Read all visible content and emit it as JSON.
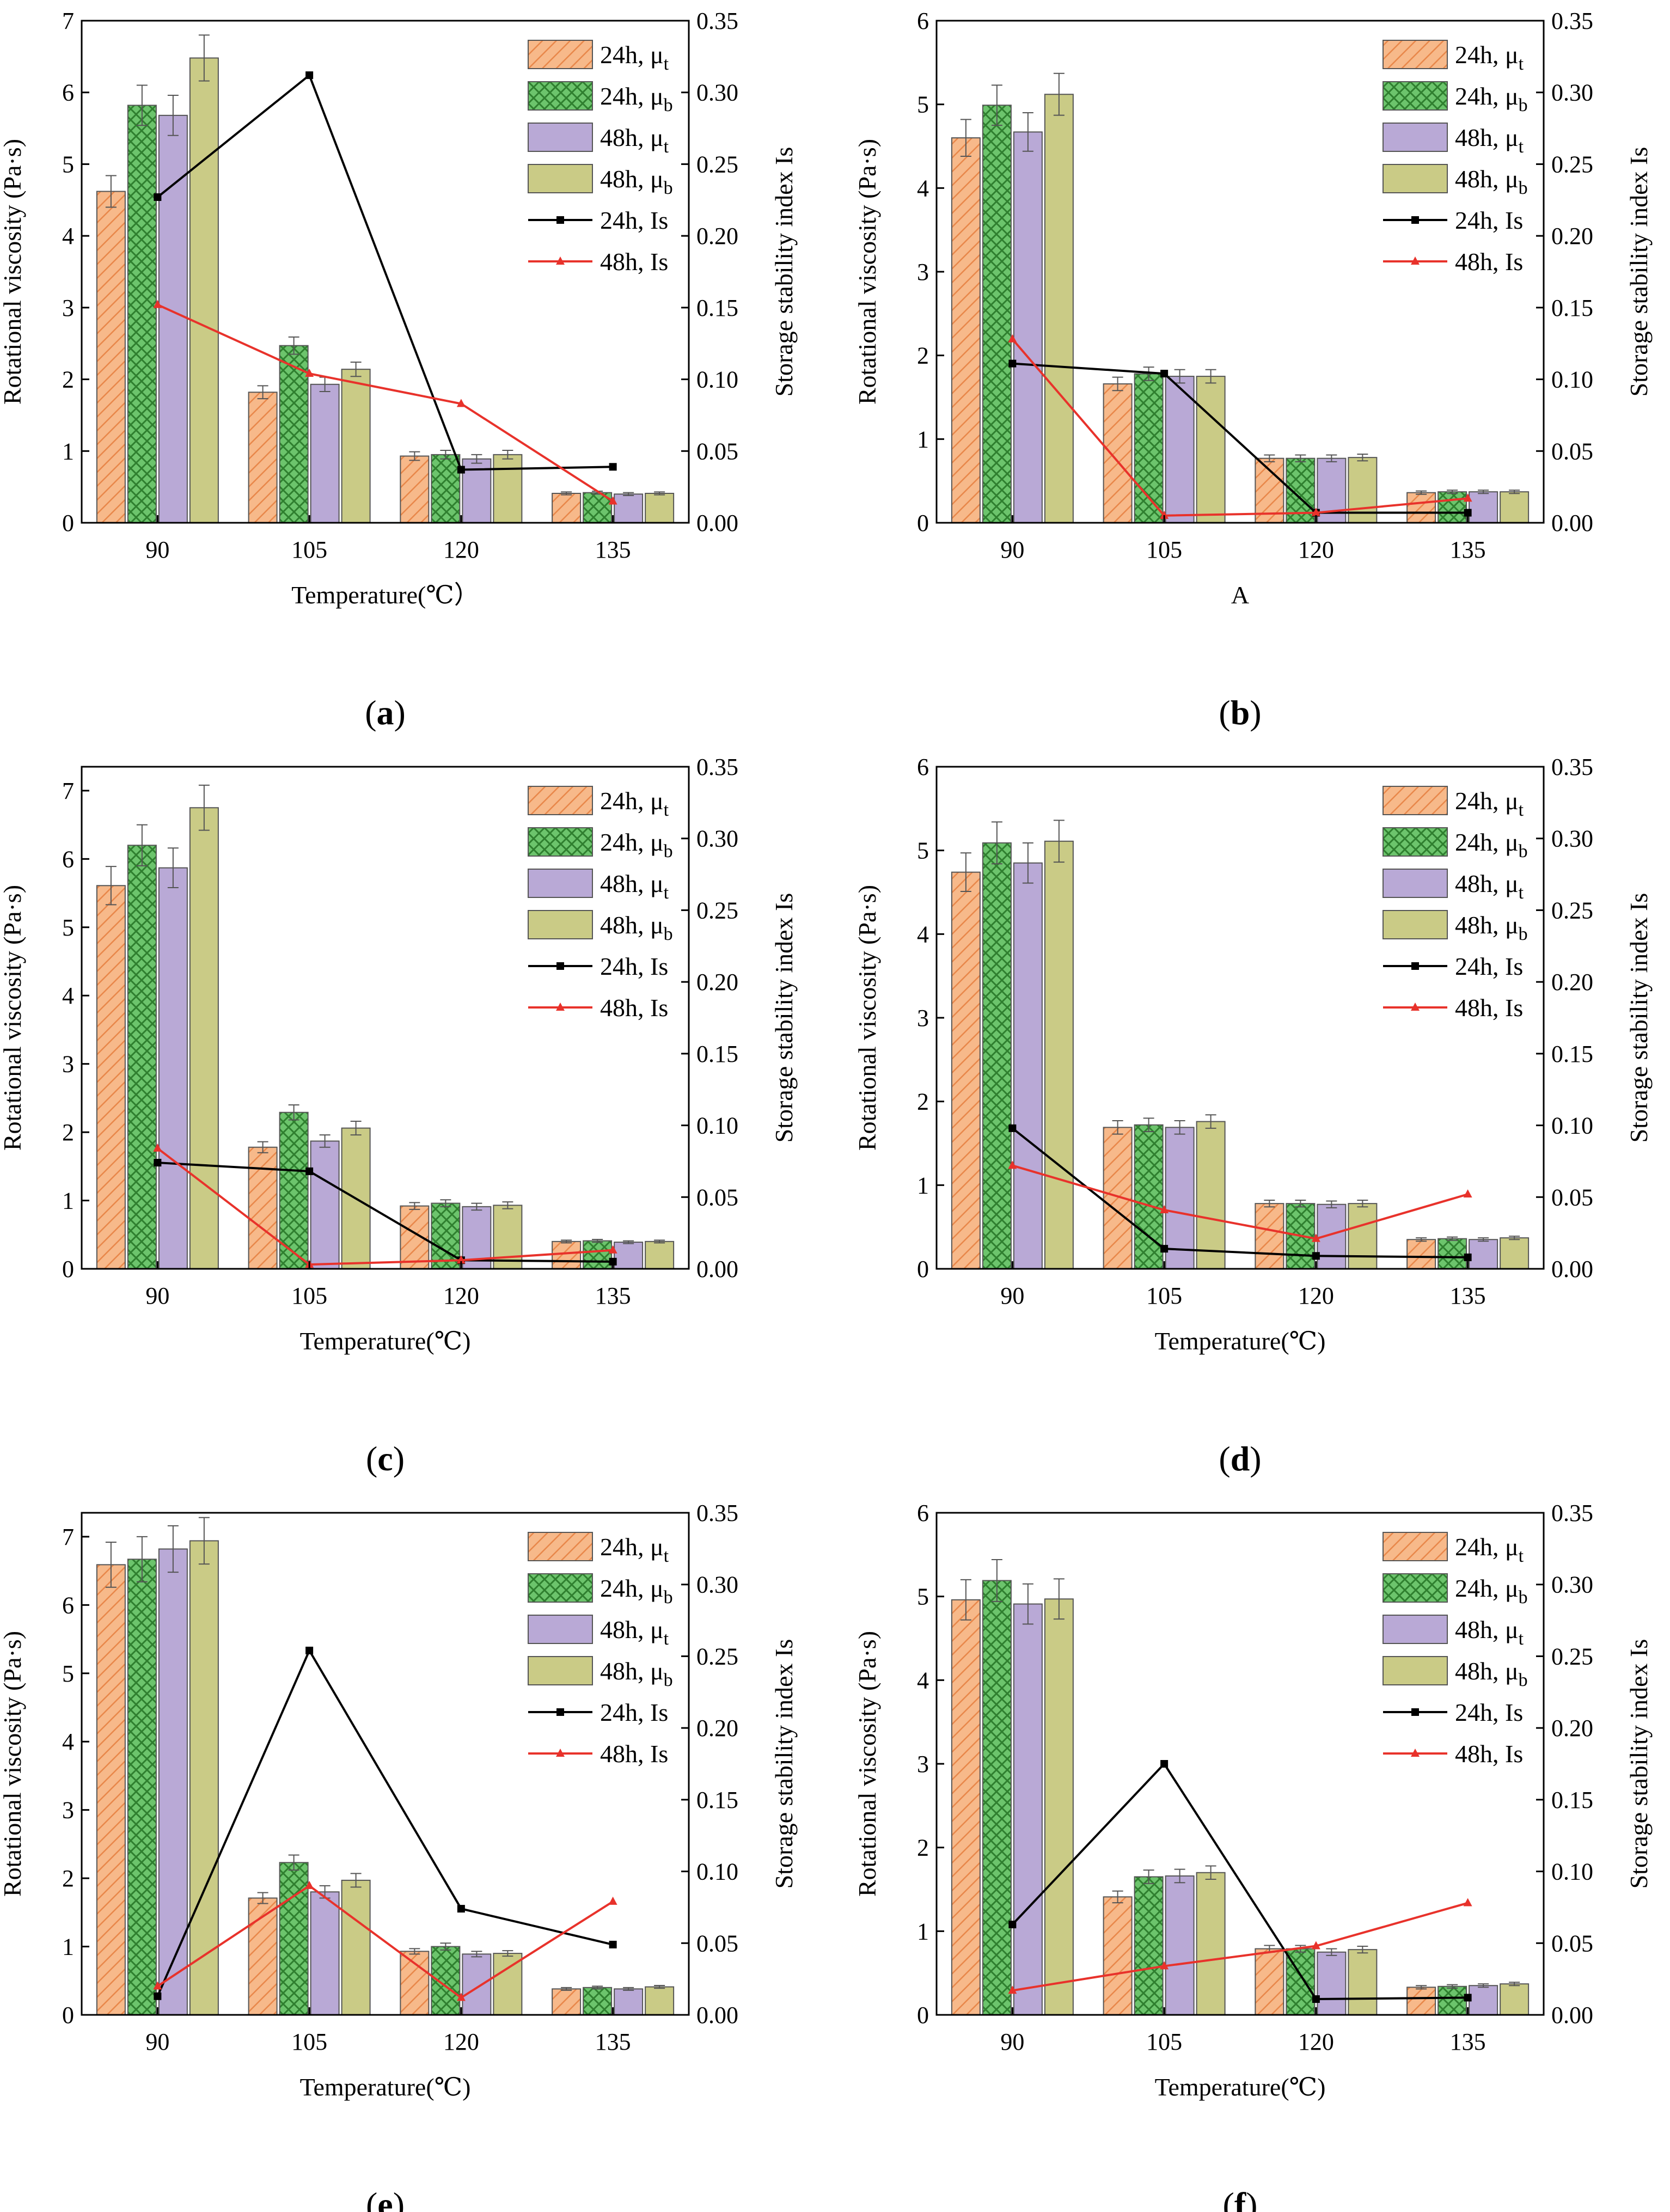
{
  "figure": {
    "caption_style": "parenthesized bold letter under each panel"
  },
  "colors": {
    "mut24": "#F7B98A",
    "mut24_hatch": "#E8874A",
    "mub24": "#6CC46C",
    "mub24_hatch": "#2F7F2F",
    "mut48": "#B9A9D6",
    "mub48": "#CACB86",
    "is24": "#000000",
    "is48": "#E8322B"
  },
  "chart_data": [
    {
      "type": "bar+line",
      "label": "a",
      "categories": [
        "90",
        "105",
        "120",
        "135"
      ],
      "xlabel": "Temperature(℃）",
      "ylabel_left": "Rotational viscosity (Pa·s)",
      "ylabel_right": "Storage stability index Is",
      "ylim_left": [
        0,
        7
      ],
      "yticks_left": [
        "0",
        "1",
        "2",
        "3",
        "4",
        "5",
        "6",
        "7"
      ],
      "ylim_right": [
        0,
        0.35
      ],
      "yticks_right": [
        "0.00",
        "0.05",
        "0.10",
        "0.15",
        "0.20",
        "0.25",
        "0.30",
        "0.35"
      ],
      "legend": [
        "24h, μt",
        "24h, μb",
        "48h, μt",
        "48h, μb",
        "24h, Is",
        "48h, Is"
      ],
      "bars": [
        {
          "name": "24h, μt",
          "values": [
            4.62,
            1.82,
            0.93,
            0.41
          ],
          "err": [
            0.22,
            0.09,
            0.06,
            0.02
          ]
        },
        {
          "name": "24h, μb",
          "values": [
            5.82,
            2.47,
            0.95,
            0.42
          ],
          "err": [
            0.28,
            0.12,
            0.06,
            0.02
          ]
        },
        {
          "name": "48h, μt",
          "values": [
            5.68,
            1.93,
            0.89,
            0.4
          ],
          "err": [
            0.28,
            0.1,
            0.06,
            0.02
          ]
        },
        {
          "name": "48h, μb",
          "values": [
            6.48,
            2.14,
            0.95,
            0.41
          ],
          "err": [
            0.32,
            0.1,
            0.06,
            0.02
          ]
        }
      ],
      "lines": [
        {
          "name": "24h, Is",
          "values": [
            0.227,
            0.312,
            0.037,
            0.039
          ]
        },
        {
          "name": "48h, Is",
          "values": [
            0.152,
            0.104,
            0.083,
            0.015
          ]
        }
      ]
    },
    {
      "type": "bar+line",
      "label": "b",
      "categories": [
        "90",
        "105",
        "120",
        "135"
      ],
      "xlabel": "A",
      "ylabel_left": "Rotational viscosity (Pa·s)",
      "ylabel_right": "Storage stability index Is",
      "ylim_left": [
        0,
        6
      ],
      "yticks_left": [
        "0",
        "1",
        "2",
        "3",
        "4",
        "5",
        "6"
      ],
      "ylim_right": [
        0,
        0.35
      ],
      "yticks_right": [
        "0.00",
        "0.05",
        "0.10",
        "0.15",
        "0.20",
        "0.25",
        "0.30",
        "0.35"
      ],
      "legend": [
        "24h, μt",
        "24h, μb",
        "48h, μt",
        "48h, μb",
        "24h, Is",
        "48h, Is"
      ],
      "bars": [
        {
          "name": "24h, μt",
          "values": [
            4.6,
            1.66,
            0.77,
            0.36
          ],
          "err": [
            0.22,
            0.08,
            0.04,
            0.02
          ]
        },
        {
          "name": "24h, μb",
          "values": [
            4.99,
            1.78,
            0.77,
            0.37
          ],
          "err": [
            0.24,
            0.08,
            0.04,
            0.02
          ]
        },
        {
          "name": "48h, μt",
          "values": [
            4.67,
            1.75,
            0.77,
            0.37
          ],
          "err": [
            0.23,
            0.08,
            0.04,
            0.02
          ]
        },
        {
          "name": "48h, μb",
          "values": [
            5.12,
            1.75,
            0.78,
            0.37
          ],
          "err": [
            0.25,
            0.08,
            0.04,
            0.02
          ]
        }
      ],
      "lines": [
        {
          "name": "24h, Is",
          "values": [
            0.111,
            0.104,
            0.007,
            0.007
          ]
        },
        {
          "name": "48h, Is",
          "values": [
            0.128,
            0.005,
            0.007,
            0.017
          ]
        }
      ]
    },
    {
      "type": "bar+line",
      "label": "c",
      "categories": [
        "90",
        "105",
        "120",
        "135"
      ],
      "xlabel": "Temperature(℃)",
      "ylabel_left": "Rotational viscosity (Pa·s)",
      "ylabel_right": "Storage stability index Is",
      "ylim_left": [
        0,
        7.35
      ],
      "yticks_left": [
        "0",
        "1",
        "2",
        "3",
        "4",
        "5",
        "6",
        "7"
      ],
      "ylim_right": [
        0,
        0.35
      ],
      "yticks_right": [
        "0.00",
        "0.05",
        "0.10",
        "0.15",
        "0.20",
        "0.25",
        "0.30",
        "0.35"
      ],
      "legend": [
        "24h, μt",
        "24h, μb",
        "48h, μt",
        "48h, μb",
        "24h, Is",
        "48h, Is"
      ],
      "bars": [
        {
          "name": "24h, μt",
          "values": [
            5.61,
            1.78,
            0.92,
            0.4
          ],
          "err": [
            0.28,
            0.08,
            0.05,
            0.02
          ]
        },
        {
          "name": "24h, μb",
          "values": [
            6.2,
            2.29,
            0.96,
            0.41
          ],
          "err": [
            0.3,
            0.11,
            0.05,
            0.02
          ]
        },
        {
          "name": "48h, μt",
          "values": [
            5.87,
            1.87,
            0.91,
            0.39
          ],
          "err": [
            0.29,
            0.09,
            0.05,
            0.02
          ]
        },
        {
          "name": "48h, μb",
          "values": [
            6.75,
            2.06,
            0.93,
            0.4
          ],
          "err": [
            0.33,
            0.1,
            0.05,
            0.02
          ]
        }
      ],
      "lines": [
        {
          "name": "24h, Is",
          "values": [
            0.074,
            0.068,
            0.006,
            0.005
          ]
        },
        {
          "name": "48h, Is",
          "values": [
            0.084,
            0.003,
            0.006,
            0.013
          ]
        }
      ]
    },
    {
      "type": "bar+line",
      "label": "d",
      "categories": [
        "90",
        "105",
        "120",
        "135"
      ],
      "xlabel": "Temperature(℃)",
      "ylabel_left": "Rotational viscosity (Pa·s)",
      "ylabel_right": "Storage stability index Is",
      "ylim_left": [
        0,
        6
      ],
      "yticks_left": [
        "0",
        "1",
        "2",
        "3",
        "4",
        "5",
        "6"
      ],
      "ylim_right": [
        0,
        0.35
      ],
      "yticks_right": [
        "0.00",
        "0.05",
        "0.10",
        "0.15",
        "0.20",
        "0.25",
        "0.30",
        "0.35"
      ],
      "legend": [
        "24h, μt",
        "24h, μb",
        "48h, μt",
        "48h, μb",
        "24h, Is",
        "48h, Is"
      ],
      "bars": [
        {
          "name": "24h, μt",
          "values": [
            4.74,
            1.69,
            0.78,
            0.35
          ],
          "err": [
            0.23,
            0.08,
            0.04,
            0.02
          ]
        },
        {
          "name": "24h, μb",
          "values": [
            5.09,
            1.72,
            0.78,
            0.36
          ],
          "err": [
            0.25,
            0.08,
            0.04,
            0.02
          ]
        },
        {
          "name": "48h, μt",
          "values": [
            4.85,
            1.69,
            0.77,
            0.35
          ],
          "err": [
            0.24,
            0.08,
            0.04,
            0.02
          ]
        },
        {
          "name": "48h, μb",
          "values": [
            5.11,
            1.76,
            0.78,
            0.37
          ],
          "err": [
            0.25,
            0.08,
            0.04,
            0.02
          ]
        }
      ],
      "lines": [
        {
          "name": "24h, Is",
          "values": [
            0.098,
            0.014,
            0.009,
            0.008
          ]
        },
        {
          "name": "48h, Is",
          "values": [
            0.072,
            0.041,
            0.021,
            0.052
          ]
        }
      ]
    },
    {
      "type": "bar+line",
      "label": "e",
      "categories": [
        "90",
        "105",
        "120",
        "135"
      ],
      "xlabel": "Temperature(℃)",
      "ylabel_left": "Rotational viscosity (Pa·s)",
      "ylabel_right": "Storage stability index Is",
      "ylim_left": [
        0,
        7.35
      ],
      "yticks_left": [
        "0",
        "1",
        "2",
        "3",
        "4",
        "5",
        "6",
        "7"
      ],
      "ylim_right": [
        0,
        0.35
      ],
      "yticks_right": [
        "0.00",
        "0.05",
        "0.10",
        "0.15",
        "0.20",
        "0.25",
        "0.30",
        "0.35"
      ],
      "legend": [
        "24h, μt",
        "24h, μb",
        "48h, μt",
        "48h, μb",
        "24h, Is",
        "48h, Is"
      ],
      "bars": [
        {
          "name": "24h, μt",
          "values": [
            6.59,
            1.71,
            0.93,
            0.38
          ],
          "err": [
            0.33,
            0.08,
            0.04,
            0.02
          ]
        },
        {
          "name": "24h, μb",
          "values": [
            6.67,
            2.23,
            1.0,
            0.4
          ],
          "err": [
            0.33,
            0.11,
            0.05,
            0.02
          ]
        },
        {
          "name": "48h, μt",
          "values": [
            6.82,
            1.8,
            0.89,
            0.38
          ],
          "err": [
            0.34,
            0.09,
            0.04,
            0.02
          ]
        },
        {
          "name": "48h, μb",
          "values": [
            6.94,
            1.97,
            0.9,
            0.41
          ],
          "err": [
            0.34,
            0.1,
            0.04,
            0.02
          ]
        }
      ],
      "lines": [
        {
          "name": "24h, Is",
          "values": [
            0.013,
            0.254,
            0.074,
            0.049
          ]
        },
        {
          "name": "48h, Is",
          "values": [
            0.02,
            0.09,
            0.012,
            0.079
          ]
        }
      ]
    },
    {
      "type": "bar+line",
      "label": "f",
      "categories": [
        "90",
        "105",
        "120",
        "135"
      ],
      "xlabel": "Temperature(℃)",
      "ylabel_left": "Rotational viscosity (Pa·s)",
      "ylabel_right": "Storage stability index Is",
      "ylim_left": [
        0,
        6
      ],
      "yticks_left": [
        "0",
        "1",
        "2",
        "3",
        "4",
        "5",
        "6"
      ],
      "ylim_right": [
        0,
        0.35
      ],
      "yticks_right": [
        "0.00",
        "0.05",
        "0.10",
        "0.15",
        "0.20",
        "0.25",
        "0.30",
        "0.35"
      ],
      "legend": [
        "24h, μt",
        "24h, μb",
        "48h, μt",
        "48h, μb",
        "24h, Is",
        "48h, Is"
      ],
      "bars": [
        {
          "name": "24h, μt",
          "values": [
            4.96,
            1.41,
            0.79,
            0.33
          ],
          "err": [
            0.24,
            0.07,
            0.04,
            0.02
          ]
        },
        {
          "name": "24h, μb",
          "values": [
            5.19,
            1.65,
            0.79,
            0.34
          ],
          "err": [
            0.25,
            0.08,
            0.04,
            0.02
          ]
        },
        {
          "name": "48h, μt",
          "values": [
            4.91,
            1.66,
            0.75,
            0.35
          ],
          "err": [
            0.24,
            0.08,
            0.04,
            0.02
          ]
        },
        {
          "name": "48h, μb",
          "values": [
            4.97,
            1.7,
            0.78,
            0.37
          ],
          "err": [
            0.24,
            0.08,
            0.04,
            0.02
          ]
        }
      ],
      "lines": [
        {
          "name": "24h, Is",
          "values": [
            0.063,
            0.175,
            0.011,
            0.012
          ]
        },
        {
          "name": "48h, Is",
          "values": [
            0.017,
            0.034,
            0.048,
            0.078
          ]
        }
      ]
    }
  ]
}
